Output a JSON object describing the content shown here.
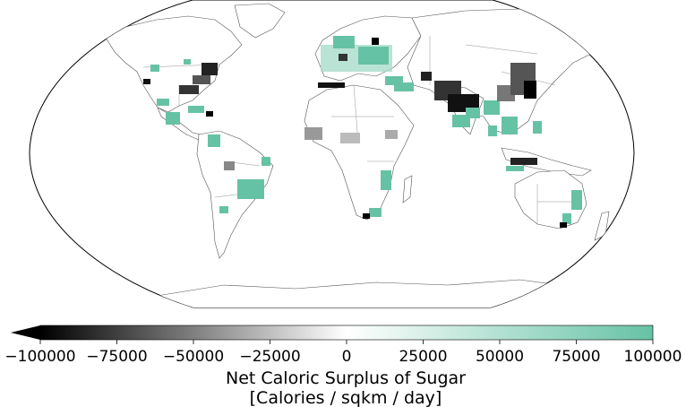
{
  "colors": {
    "negative_extreme": "#000000",
    "neutral": "#ffffff",
    "positive_extreme": "#66c2a5",
    "frame": "#000000",
    "coastline": "#555555"
  },
  "colorbar": {
    "min": -100000,
    "max": 100000,
    "extend": "min",
    "ticks": [
      "−100000",
      "−75000",
      "−50000",
      "−25000",
      "0",
      "25000",
      "50000",
      "75000",
      "100000"
    ],
    "label_line1": "Net Caloric Surplus of Sugar",
    "label_line2": "[Calories / sqkm / day]"
  }
}
